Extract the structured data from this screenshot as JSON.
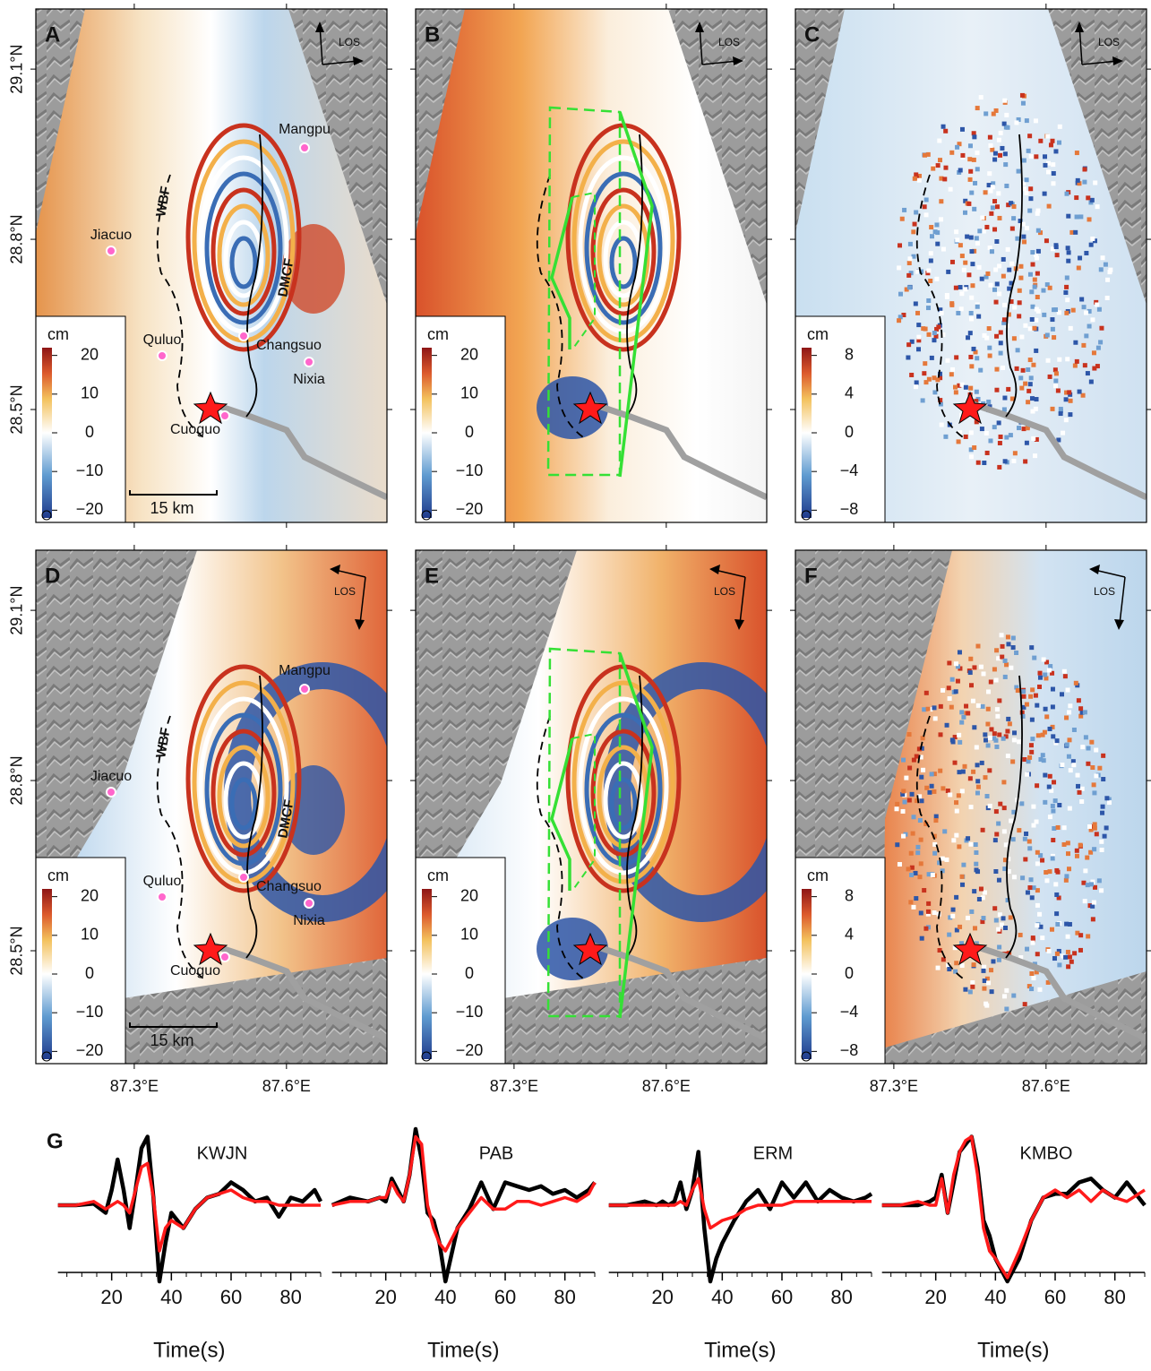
{
  "panels": [
    {
      "label": "A",
      "los": "LOS",
      "colorbar": {
        "unit": "cm",
        "lim": [
          -22,
          22
        ],
        "ticks": [
          20,
          10,
          0,
          {
            "value": -10,
            "label": "−10"
          },
          {
            "value": -20,
            "label": "−20"
          }
        ]
      },
      "places": [
        "Mangpu",
        "Jiacuo",
        "Quluo",
        "Changsuo",
        "Nixia",
        "Cuoguo"
      ],
      "faults": [
        "WBF",
        "DMCF"
      ],
      "scale": "15 km"
    },
    {
      "label": "B",
      "los": "LOS",
      "colorbar": {
        "unit": "cm",
        "lim": [
          -22,
          22
        ],
        "ticks": [
          20,
          10,
          0,
          {
            "value": -10,
            "label": "−10"
          },
          {
            "value": -20,
            "label": "−20"
          }
        ]
      }
    },
    {
      "label": "C",
      "los": "LOS",
      "colorbar": {
        "unit": "cm",
        "lim": [
          -8.8,
          8.8
        ],
        "ticks": [
          8,
          4,
          0,
          {
            "value": -4,
            "label": "−4"
          },
          {
            "value": -8,
            "label": "−8"
          }
        ]
      }
    },
    {
      "label": "D",
      "los": "LOS",
      "colorbar": {
        "unit": "cm",
        "lim": [
          -22,
          22
        ],
        "ticks": [
          20,
          10,
          0,
          {
            "value": -10,
            "label": "−10"
          },
          {
            "value": -20,
            "label": "−20"
          }
        ]
      },
      "places": [
        "Mangpu",
        "Jiacuo",
        "Quluo",
        "Changsuo",
        "Nixia",
        "Cuoguo"
      ],
      "faults": [
        "WBF",
        "DMCF"
      ],
      "scale": "15 km"
    },
    {
      "label": "E",
      "los": "LOS",
      "colorbar": {
        "unit": "cm",
        "lim": [
          -22,
          22
        ],
        "ticks": [
          20,
          10,
          0,
          {
            "value": -10,
            "label": "−10"
          },
          {
            "value": -20,
            "label": "−20"
          }
        ]
      }
    },
    {
      "label": "F",
      "los": "LOS",
      "colorbar": {
        "unit": "cm",
        "lim": [
          -8.8,
          8.8
        ],
        "ticks": [
          8,
          4,
          0,
          {
            "value": -4,
            "label": "−4"
          },
          {
            "value": -8,
            "label": "−8"
          }
        ]
      }
    }
  ],
  "map_axes": {
    "latlim": [
      28.301,
      29.206
    ],
    "lonlim": [
      87.106,
      87.798
    ],
    "latticks": [
      {
        "value": 29.1,
        "label": "29.1°N"
      },
      {
        "value": 28.8,
        "label": "28.8°N"
      },
      {
        "value": 28.5,
        "label": "28.5°N"
      }
    ],
    "lonticks": [
      {
        "value": 87.3,
        "label": "87.3°E"
      },
      {
        "value": 87.6,
        "label": "87.6°E"
      }
    ]
  },
  "panel_g": {
    "label": "G",
    "xlabel": "Time(s)",
    "xlim": [
      2,
      90
    ],
    "ylim": [
      -1,
      1
    ],
    "xticks": [
      20,
      40,
      60,
      80
    ],
    "minor_xticks": [
      5,
      10,
      15,
      25,
      30,
      35,
      45,
      50,
      55,
      65,
      70,
      75,
      85,
      90
    ],
    "observed_color": "#000000",
    "synthetic_color": "#ff1a1a",
    "t": [
      2,
      8,
      14,
      18,
      20,
      22,
      24,
      26,
      28,
      30,
      32,
      34,
      36,
      38,
      40,
      44,
      48,
      52,
      56,
      60,
      64,
      68,
      72,
      76,
      80,
      84,
      88,
      90
    ],
    "stations": [
      {
        "name": "KWJN",
        "observed": [
          0,
          0,
          0.02,
          -0.1,
          0.2,
          0.6,
          0.2,
          -0.3,
          0.2,
          0.75,
          0.9,
          0.1,
          -1,
          -0.5,
          -0.1,
          -0.3,
          -0.05,
          0.1,
          0.15,
          0.3,
          0.2,
          0.05,
          0.1,
          -0.15,
          0.1,
          0.05,
          0.2,
          0.05
        ],
        "synthetic": [
          0,
          0,
          0.05,
          -0.05,
          0,
          0.05,
          0,
          -0.1,
          0.2,
          0.5,
          0.55,
          0.1,
          -0.6,
          -0.3,
          -0.2,
          -0.3,
          -0.05,
          0.1,
          0.15,
          0.2,
          0.1,
          0.05,
          0.05,
          0,
          0,
          0,
          0,
          0
        ]
      },
      {
        "name": "PAB",
        "observed": [
          0,
          0.1,
          0.05,
          0.1,
          0.05,
          0.35,
          0.2,
          0.05,
          0.4,
          1,
          0.6,
          -0.1,
          -0.2,
          -0.5,
          -1,
          -0.3,
          -0.05,
          0.3,
          -0.05,
          0.3,
          0.25,
          0.2,
          0.25,
          0.15,
          0.2,
          0.1,
          0.2,
          0.3
        ],
        "synthetic": [
          0,
          0.05,
          0.05,
          0.1,
          0.1,
          0.3,
          0.15,
          0.05,
          0.4,
          0.9,
          0.8,
          0,
          -0.3,
          -0.5,
          -0.6,
          -0.3,
          -0.1,
          0.1,
          -0.05,
          -0.05,
          0.05,
          0.05,
          0,
          0.05,
          0.1,
          0.05,
          0.15,
          0.3
        ]
      },
      {
        "name": "ERM",
        "observed": [
          0,
          0,
          0.05,
          0,
          0.05,
          0,
          0.05,
          0.3,
          -0.05,
          0.2,
          0.7,
          -0.3,
          -1,
          -0.7,
          -0.5,
          -0.2,
          0.05,
          0.2,
          -0.05,
          0.3,
          0.1,
          0.3,
          0.05,
          0.2,
          0.1,
          0.05,
          0.1,
          0.15
        ],
        "synthetic": [
          0,
          0,
          0,
          0,
          0,
          0,
          0,
          0.05,
          0,
          0.2,
          0.35,
          -0.05,
          -0.3,
          -0.25,
          -0.2,
          -0.15,
          -0.05,
          0,
          0,
          0,
          0.05,
          0.05,
          0.05,
          0.05,
          0.05,
          0.05,
          0.05,
          0.05
        ]
      },
      {
        "name": "KMBO",
        "observed": [
          0,
          0,
          0,
          0.05,
          0.1,
          0.4,
          -0.1,
          0.3,
          0.7,
          0.8,
          0.9,
          0.5,
          -0.2,
          -0.4,
          -0.7,
          -1,
          -0.7,
          -0.2,
          0.1,
          0.15,
          0.15,
          0.3,
          0.35,
          0.2,
          0.1,
          0.3,
          0.1,
          0
        ],
        "synthetic": [
          0,
          0,
          0.05,
          0,
          0,
          0.35,
          -0.1,
          0.4,
          0.7,
          0.85,
          0.9,
          0.4,
          -0.3,
          -0.6,
          -0.7,
          -0.95,
          -0.6,
          -0.2,
          0.1,
          0.2,
          0.1,
          0.2,
          0.05,
          0.2,
          0.1,
          0.05,
          0.15,
          0.2
        ]
      }
    ]
  }
}
